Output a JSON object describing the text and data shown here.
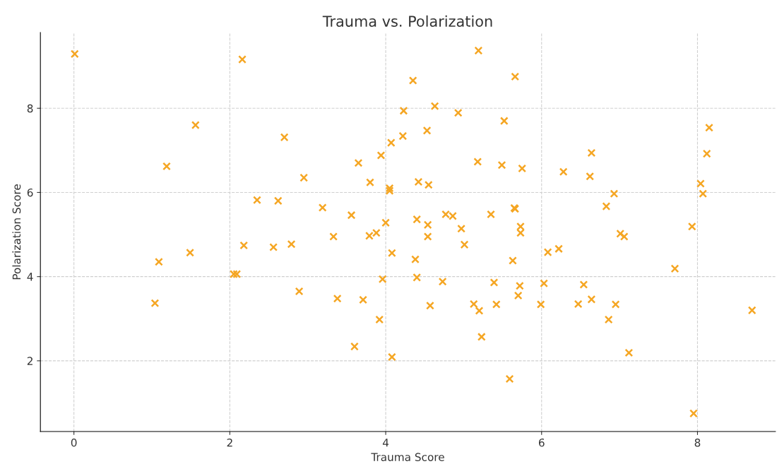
{
  "chart_data": {
    "type": "scatter",
    "title": "Trauma vs. Polarization",
    "xlabel": "Trauma Score",
    "ylabel": "Polarization Score",
    "xlim": [
      -0.43,
      9.0
    ],
    "ylim": [
      0.32,
      9.8
    ],
    "xticks": [
      0,
      2,
      4,
      6,
      8
    ],
    "yticks": [
      2,
      4,
      6,
      8
    ],
    "grid": true,
    "marker": "cross",
    "series": [
      {
        "color": "#f5a623",
        "x": [
          0.01,
          2.16,
          1.56,
          2.7,
          1.19,
          2.95,
          2.35,
          2.62,
          2.18,
          2.56,
          2.79,
          1.49,
          1.09,
          2.05,
          2.09,
          2.89,
          1.04,
          5.19,
          5.66,
          4.35,
          4.63,
          4.23,
          4.93,
          5.52,
          4.53,
          4.22,
          4.07,
          3.94,
          3.65,
          5.18,
          5.49,
          5.75,
          6.28,
          3.8,
          4.42,
          4.55,
          4.05,
          4.05,
          3.19,
          3.56,
          4.77,
          4.86,
          5.35,
          5.65,
          5.66,
          4.0,
          4.4,
          4.54,
          4.97,
          5.73,
          5.73,
          3.33,
          3.79,
          3.88,
          4.54,
          5.01,
          4.08,
          4.38,
          5.63,
          6.08,
          6.22,
          3.96,
          4.4,
          4.73,
          5.39,
          5.72,
          6.03,
          3.38,
          3.71,
          4.57,
          5.13,
          5.2,
          5.42,
          5.7,
          5.99,
          3.92,
          5.23,
          3.6,
          4.08,
          5.59,
          8.15,
          6.64,
          8.12,
          6.62,
          8.04,
          8.07,
          6.93,
          6.83,
          7.93,
          7.01,
          7.06,
          7.71,
          6.54,
          6.64,
          6.47,
          6.95,
          6.86,
          8.7,
          7.12,
          7.95
        ],
        "values": [
          9.29,
          9.16,
          7.6,
          7.31,
          6.62,
          6.35,
          5.82,
          5.8,
          4.74,
          4.7,
          4.77,
          4.57,
          4.35,
          4.06,
          4.06,
          3.65,
          3.37,
          9.37,
          8.75,
          8.66,
          8.05,
          7.94,
          7.89,
          7.7,
          7.47,
          7.34,
          7.18,
          6.88,
          6.7,
          6.73,
          6.65,
          6.57,
          6.49,
          6.24,
          6.25,
          6.18,
          6.1,
          6.04,
          5.64,
          5.46,
          5.48,
          5.44,
          5.48,
          5.63,
          5.61,
          5.28,
          5.36,
          5.23,
          5.14,
          5.19,
          5.04,
          4.95,
          4.97,
          5.04,
          4.95,
          4.76,
          4.56,
          4.41,
          4.38,
          4.58,
          4.66,
          3.94,
          3.98,
          3.88,
          3.86,
          3.78,
          3.84,
          3.48,
          3.45,
          3.31,
          3.35,
          3.19,
          3.34,
          3.55,
          3.34,
          2.98,
          2.57,
          2.34,
          2.09,
          1.57,
          7.54,
          6.94,
          6.92,
          6.38,
          6.21,
          5.97,
          5.97,
          5.67,
          5.19,
          5.02,
          4.95,
          4.19,
          3.81,
          3.46,
          3.35,
          3.34,
          2.98,
          3.2,
          2.19,
          0.75
        ]
      }
    ]
  }
}
